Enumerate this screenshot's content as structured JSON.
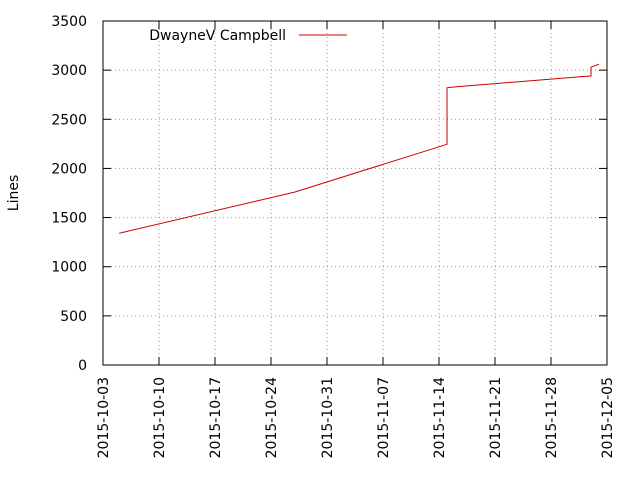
{
  "chart_data": {
    "type": "line",
    "title": "",
    "xlabel": "",
    "ylabel": "Lines",
    "x_is_date": true,
    "xlim": [
      "2015-10-03",
      "2015-12-05"
    ],
    "ylim": [
      0,
      3500
    ],
    "xticks": [
      "2015-10-03",
      "2015-10-10",
      "2015-10-17",
      "2015-10-24",
      "2015-10-31",
      "2015-11-07",
      "2015-11-14",
      "2015-11-21",
      "2015-11-28",
      "2015-12-05"
    ],
    "yticks": [
      "0",
      "500",
      "1000",
      "1500",
      "2000",
      "2500",
      "3000",
      "3500"
    ],
    "grid": true,
    "legend_position": "top-left",
    "series": [
      {
        "name": "DwayneV Campbell",
        "color": "#cc0000",
        "points": [
          [
            "2015-10-05",
            1340
          ],
          [
            "2015-10-27",
            1760
          ],
          [
            "2015-11-15",
            2245
          ],
          [
            "2015-11-15",
            2820
          ],
          [
            "2015-11-16",
            2830
          ],
          [
            "2015-12-02",
            2935
          ],
          [
            "2015-12-03",
            2940
          ],
          [
            "2015-12-03",
            3030
          ],
          [
            "2015-12-04",
            3060
          ]
        ]
      }
    ]
  }
}
